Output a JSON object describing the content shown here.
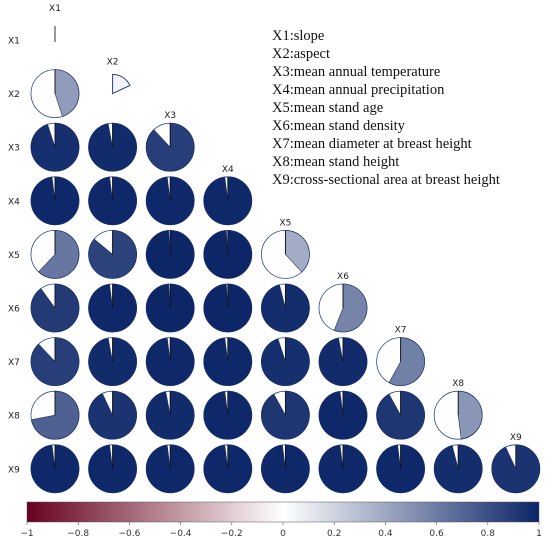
{
  "chart_data": {
    "type": "heatmap",
    "subtype": "lower-triangular correlation pie matrix",
    "variables": [
      "X1",
      "X2",
      "X3",
      "X4",
      "X5",
      "X6",
      "X7",
      "X8",
      "X9"
    ],
    "variable_legend": [
      "X1:slope",
      "X2:aspect",
      "X3:mean annual temperature",
      "X4:mean annual precipitation",
      "X5:mean stand age",
      "X6:mean stand density",
      "X7:mean diameter at breast height",
      "X8:mean stand height",
      "X9:cross-sectional area at breast height"
    ],
    "matrix": [
      [
        0.0
      ],
      [
        0.45,
        0.18
      ],
      [
        0.95,
        0.97,
        0.88
      ],
      [
        0.98,
        0.98,
        0.98,
        0.98
      ],
      [
        0.62,
        0.86,
        0.99,
        0.99,
        0.38
      ],
      [
        0.9,
        0.98,
        0.99,
        0.99,
        0.96,
        0.56
      ],
      [
        0.88,
        0.97,
        0.98,
        0.98,
        0.95,
        0.97,
        0.58
      ],
      [
        0.72,
        0.93,
        0.97,
        0.98,
        0.92,
        0.98,
        0.92,
        0.48
      ],
      [
        0.98,
        0.98,
        0.98,
        0.98,
        0.98,
        0.98,
        0.98,
        0.96,
        0.93
      ]
    ],
    "colorbar": {
      "range": [
        -1,
        1
      ],
      "ticks": [
        "−1",
        "−0.8",
        "−0.6",
        "−0.4",
        "−0.2",
        "0",
        "0.2",
        "0.4",
        "0.6",
        "0.8",
        "1"
      ],
      "colors": {
        "neg": "#67001f",
        "mid": "#ffffff",
        "pos": "#0a2466"
      }
    }
  }
}
